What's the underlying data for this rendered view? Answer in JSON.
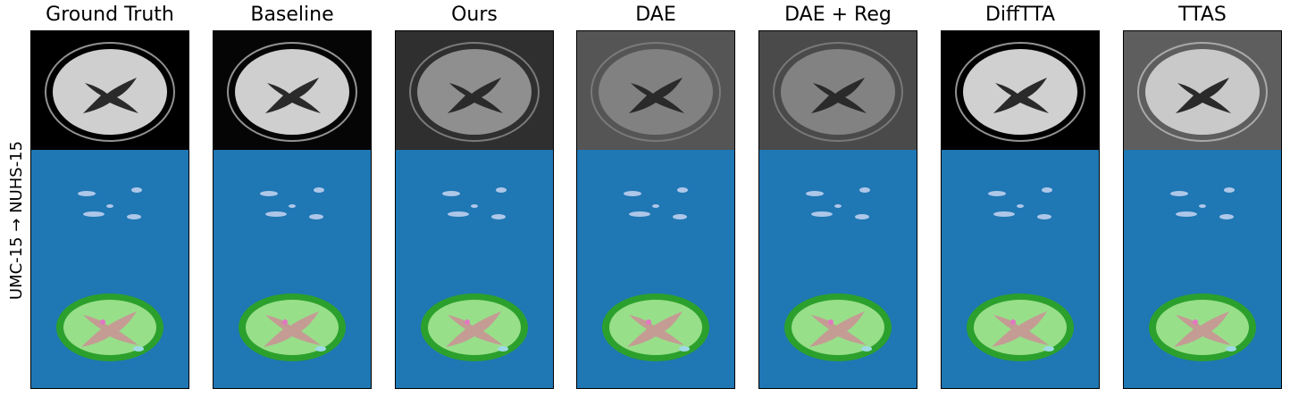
{
  "figure": {
    "row_label": "UMC-15 → NUHS-15",
    "columns": [
      {
        "key": "gt",
        "title": "Ground Truth",
        "mri_bg": "#000000",
        "brain": "#cfcfcf",
        "brain_opacity": 1.0
      },
      {
        "key": "baseline",
        "title": "Baseline",
        "mri_bg": "#050505",
        "brain": "#cfcfcf",
        "brain_opacity": 1.0
      },
      {
        "key": "ours",
        "title": "Ours",
        "mri_bg": "#2f2f2f",
        "brain": "#9a9a9a",
        "brain_opacity": 0.9
      },
      {
        "key": "dae",
        "title": "DAE",
        "mri_bg": "#555555",
        "brain": "#8a8a8a",
        "brain_opacity": 0.85
      },
      {
        "key": "dae_reg",
        "title": "DAE + Reg",
        "mri_bg": "#4a4a4a",
        "brain": "#8c8c8c",
        "brain_opacity": 0.85
      },
      {
        "key": "difftta",
        "title": "DiffTTA",
        "mri_bg": "#000000",
        "brain": "#d0d0d0",
        "brain_opacity": 1.0
      },
      {
        "key": "ttas",
        "title": "TTAS",
        "mri_bg": "#5e5e5e",
        "brain": "#c9c9c9",
        "brain_opacity": 1.0
      }
    ],
    "colors": {
      "background_class": "#1f77b4",
      "lesion": "#aec7e8",
      "cortex": "#2ca02c",
      "white_matter": "#98df8a",
      "ventricle": "#c49c94",
      "csf": "#9edae5",
      "other": "#e377c2"
    }
  }
}
